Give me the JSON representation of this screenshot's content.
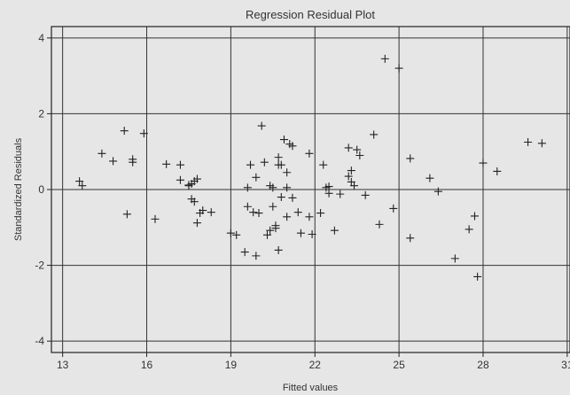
{
  "chart_data": {
    "type": "scatter",
    "title": "Regression Residual Plot",
    "xlabel": "Fitted values",
    "ylabel": "Standardized Residuals",
    "xlim": [
      12.6,
      31.1
    ],
    "ylim": [
      -4.3,
      4.3
    ],
    "xticks": [
      13,
      16,
      19,
      22,
      25,
      28,
      31
    ],
    "yticks": [
      4,
      2,
      0,
      -2,
      -4
    ],
    "grid": true,
    "marker": "+",
    "points": [
      [
        13.6,
        0.22
      ],
      [
        13.7,
        0.1
      ],
      [
        14.4,
        0.95
      ],
      [
        14.8,
        0.75
      ],
      [
        15.2,
        1.55
      ],
      [
        15.3,
        -0.65
      ],
      [
        15.5,
        0.72
      ],
      [
        15.5,
        0.8
      ],
      [
        15.9,
        1.48
      ],
      [
        16.3,
        -0.78
      ],
      [
        16.7,
        0.67
      ],
      [
        17.2,
        0.65
      ],
      [
        17.2,
        0.25
      ],
      [
        17.5,
        0.12
      ],
      [
        17.5,
        0.1
      ],
      [
        17.6,
        -0.25
      ],
      [
        17.6,
        0.15
      ],
      [
        17.7,
        -0.32
      ],
      [
        17.7,
        0.22
      ],
      [
        17.8,
        0.28
      ],
      [
        17.8,
        -0.88
      ],
      [
        17.9,
        -0.62
      ],
      [
        18.0,
        -0.55
      ],
      [
        18.3,
        -0.6
      ],
      [
        19.0,
        -1.15
      ],
      [
        19.2,
        -1.2
      ],
      [
        19.5,
        -1.65
      ],
      [
        19.6,
        0.05
      ],
      [
        19.6,
        -0.45
      ],
      [
        19.7,
        0.65
      ],
      [
        19.8,
        -0.6
      ],
      [
        19.9,
        -1.75
      ],
      [
        19.9,
        0.32
      ],
      [
        20.0,
        -0.62
      ],
      [
        20.1,
        1.68
      ],
      [
        20.2,
        0.72
      ],
      [
        20.3,
        -1.2
      ],
      [
        20.4,
        0.1
      ],
      [
        20.4,
        -1.08
      ],
      [
        20.5,
        -0.45
      ],
      [
        20.5,
        0.05
      ],
      [
        20.6,
        -0.95
      ],
      [
        20.6,
        -1.02
      ],
      [
        20.7,
        0.65
      ],
      [
        20.7,
        0.85
      ],
      [
        20.7,
        -1.6
      ],
      [
        20.8,
        0.65
      ],
      [
        20.8,
        -0.2
      ],
      [
        20.9,
        1.32
      ],
      [
        21.0,
        0.45
      ],
      [
        21.0,
        0.05
      ],
      [
        21.0,
        -0.72
      ],
      [
        21.1,
        1.2
      ],
      [
        21.2,
        1.15
      ],
      [
        21.2,
        -0.22
      ],
      [
        21.4,
        -0.6
      ],
      [
        21.5,
        -1.15
      ],
      [
        21.8,
        -0.72
      ],
      [
        21.8,
        0.95
      ],
      [
        21.9,
        -1.18
      ],
      [
        22.2,
        -0.62
      ],
      [
        22.3,
        0.65
      ],
      [
        22.4,
        0.05
      ],
      [
        22.5,
        0.08
      ],
      [
        22.5,
        -0.1
      ],
      [
        22.7,
        -1.08
      ],
      [
        22.9,
        -0.12
      ],
      [
        23.2,
        1.1
      ],
      [
        23.2,
        0.35
      ],
      [
        23.3,
        0.2
      ],
      [
        23.3,
        0.5
      ],
      [
        23.4,
        0.1
      ],
      [
        23.5,
        1.05
      ],
      [
        23.6,
        0.9
      ],
      [
        23.8,
        -0.15
      ],
      [
        24.1,
        1.45
      ],
      [
        24.3,
        -0.92
      ],
      [
        24.5,
        3.45
      ],
      [
        24.8,
        -0.5
      ],
      [
        25.0,
        3.2
      ],
      [
        25.4,
        0.82
      ],
      [
        25.4,
        -1.28
      ],
      [
        26.1,
        0.3
      ],
      [
        26.4,
        -0.05
      ],
      [
        27.0,
        -1.82
      ],
      [
        27.5,
        -1.05
      ],
      [
        27.7,
        -0.7
      ],
      [
        27.8,
        -2.3
      ],
      [
        28.0,
        0.7
      ],
      [
        28.5,
        0.48
      ],
      [
        29.6,
        1.25
      ],
      [
        30.1,
        1.22
      ]
    ]
  }
}
